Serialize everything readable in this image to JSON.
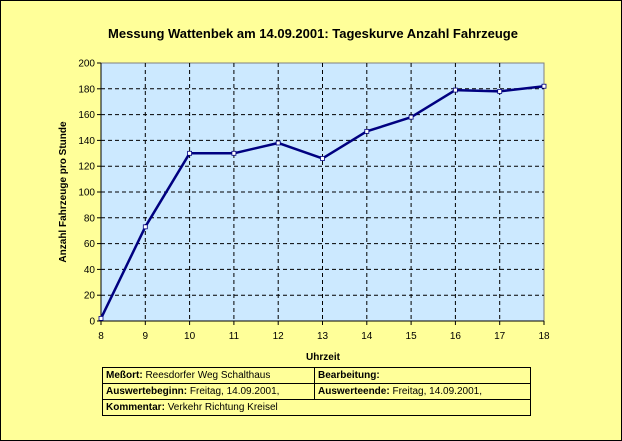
{
  "chart_data": {
    "type": "line",
    "title": "Messung Wattenbek am 14.09.2001: Tageskurve Anzahl Fahrzeuge",
    "xlabel": "Uhrzeit",
    "ylabel": "Anzahl Fahrzeuge pro Stunde",
    "x": [
      8,
      9,
      10,
      11,
      12,
      13,
      14,
      15,
      16,
      17,
      18
    ],
    "series": [
      {
        "values": [
          2,
          73,
          130,
          130,
          138,
          126,
          147,
          158,
          179,
          178,
          182
        ]
      }
    ],
    "xlim": [
      8,
      18
    ],
    "ylim": [
      0,
      200
    ],
    "yticks": [
      0,
      20,
      40,
      60,
      80,
      100,
      120,
      140,
      160,
      180,
      200
    ],
    "grid": true,
    "legend": "none",
    "colors": {
      "background": "#ffff99",
      "plot_area": "#cce9ff",
      "line": "#000080",
      "marker": "#ffffff",
      "grid": "#000000"
    }
  },
  "info": {
    "messort_label": "Meßort:",
    "messort_value": "Reesdorfer Weg Schalthaus",
    "bearbeitung_label": "Bearbeitung:",
    "auswertebeginn_label": "Auswertebeginn:",
    "auswertebeginn_value": "Freitag, 14.09.2001,",
    "auswerteende_label": "Auswerteende:",
    "auswerteende_value": "Freitag, 14.09.2001,",
    "kommentar_label": "Kommentar:",
    "kommentar_value": "Verkehr Richtung Kreisel"
  }
}
